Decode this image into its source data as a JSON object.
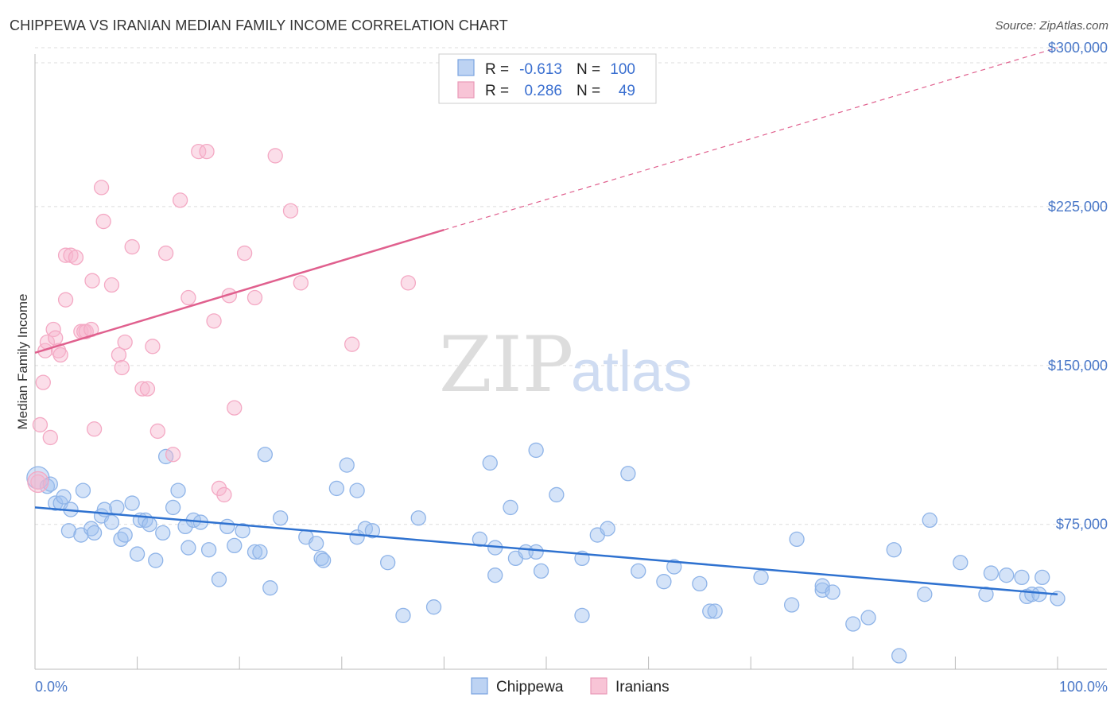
{
  "title": "CHIPPEWA VS IRANIAN MEDIAN FAMILY INCOME CORRELATION CHART",
  "source": "Source: ZipAtlas.com",
  "watermark": {
    "part1": "ZIP",
    "part2": "atlas"
  },
  "chart_data": {
    "type": "scatter",
    "ylabel": "Median Family Income",
    "xlim": [
      0,
      100
    ],
    "ylim": [
      10000,
      315000
    ],
    "x_tick_labels": {
      "left": "0.0%",
      "right": "100.0%"
    },
    "y_ticks": [
      {
        "value": 75000,
        "label": "$75,000"
      },
      {
        "value": 150000,
        "label": "$150,000"
      },
      {
        "value": 225000,
        "label": "$225,000"
      },
      {
        "value": 300000,
        "label": "$300,000"
      }
    ],
    "grid": true,
    "legend_placement": "top-center",
    "bottom_legend": [
      "Chippewa",
      "Iranians"
    ],
    "series": [
      {
        "name": "Chippewa",
        "color": "#8fb4e8",
        "line_color": "#2f72d0",
        "R": "-0.613",
        "N": "100",
        "trend": {
          "x": [
            0,
            100
          ],
          "y": [
            83000,
            42000
          ]
        },
        "points": [
          [
            0.3,
            97000
          ],
          [
            1.2,
            93000
          ],
          [
            1.5,
            94000
          ],
          [
            2,
            85000
          ],
          [
            2.5,
            85000
          ],
          [
            2.8,
            88000
          ],
          [
            3.5,
            82000
          ],
          [
            3.3,
            72000
          ],
          [
            4.5,
            70000
          ],
          [
            4.7,
            91000
          ],
          [
            5.5,
            73000
          ],
          [
            5.8,
            71000
          ],
          [
            6.5,
            79000
          ],
          [
            6.8,
            82000
          ],
          [
            7.5,
            76000
          ],
          [
            8,
            83000
          ],
          [
            8.4,
            68000
          ],
          [
            8.8,
            70000
          ],
          [
            9.5,
            85000
          ],
          [
            10,
            61000
          ],
          [
            10.3,
            77000
          ],
          [
            10.8,
            77000
          ],
          [
            11.2,
            75000
          ],
          [
            11.8,
            58000
          ],
          [
            12.5,
            71000
          ],
          [
            12.8,
            107000
          ],
          [
            13.5,
            83000
          ],
          [
            14,
            91000
          ],
          [
            14.7,
            74000
          ],
          [
            15,
            64000
          ],
          [
            15.5,
            77000
          ],
          [
            16.2,
            76000
          ],
          [
            17,
            63000
          ],
          [
            18,
            49000
          ],
          [
            18.8,
            74000
          ],
          [
            19.5,
            65000
          ],
          [
            20.3,
            72000
          ],
          [
            21.5,
            62000
          ],
          [
            22,
            62000
          ],
          [
            23,
            45000
          ],
          [
            22.5,
            108000
          ],
          [
            24,
            78000
          ],
          [
            26.5,
            69000
          ],
          [
            27.5,
            66000
          ],
          [
            28,
            59000
          ],
          [
            28.2,
            58000
          ],
          [
            29.5,
            92000
          ],
          [
            30.5,
            103000
          ],
          [
            31.5,
            69000
          ],
          [
            31.5,
            91000
          ],
          [
            32.3,
            73000
          ],
          [
            33,
            72000
          ],
          [
            34.5,
            57000
          ],
          [
            36,
            32000
          ],
          [
            37.5,
            78000
          ],
          [
            39,
            36000
          ],
          [
            43.5,
            68000
          ],
          [
            44.5,
            104000
          ],
          [
            45,
            51000
          ],
          [
            45,
            64000
          ],
          [
            46.5,
            83000
          ],
          [
            47,
            59000
          ],
          [
            48,
            62000
          ],
          [
            49,
            62000
          ],
          [
            49.5,
            53000
          ],
          [
            49,
            110000
          ],
          [
            51,
            89000
          ],
          [
            53.5,
            59000
          ],
          [
            53.5,
            32000
          ],
          [
            55,
            70000
          ],
          [
            56,
            73000
          ],
          [
            58,
            99000
          ],
          [
            59,
            53000
          ],
          [
            61.5,
            48000
          ],
          [
            62.5,
            55000
          ],
          [
            65,
            47000
          ],
          [
            66,
            34000
          ],
          [
            66.5,
            34000
          ],
          [
            71,
            50000
          ],
          [
            74,
            37000
          ],
          [
            74.5,
            68000
          ],
          [
            77,
            44000
          ],
          [
            77,
            46000
          ],
          [
            78,
            43000
          ],
          [
            80,
            28000
          ],
          [
            81.5,
            31000
          ],
          [
            84,
            63000
          ],
          [
            84.5,
            13000
          ],
          [
            87,
            42000
          ],
          [
            87.5,
            77000
          ],
          [
            90.5,
            57000
          ],
          [
            93,
            42000
          ],
          [
            93.5,
            52000
          ],
          [
            95,
            51000
          ],
          [
            96.5,
            50000
          ],
          [
            97,
            41000
          ],
          [
            97.5,
            42000
          ],
          [
            98.2,
            42000
          ],
          [
            98.5,
            50000
          ],
          [
            100,
            40000
          ]
        ]
      },
      {
        "name": "Iranians",
        "color": "#f4a9c4",
        "line_color": "#e0608e",
        "R": "0.286",
        "N": "49",
        "trend": {
          "x": [
            0,
            40
          ],
          "y": [
            156000,
            214000
          ]
        },
        "trend_extension": {
          "x": [
            40,
            100
          ],
          "y": [
            214000,
            300000
          ]
        },
        "points": [
          [
            0.3,
            95000
          ],
          [
            0.5,
            122000
          ],
          [
            0.8,
            142000
          ],
          [
            1,
            157000
          ],
          [
            1.2,
            161000
          ],
          [
            1.5,
            116000
          ],
          [
            1.8,
            167000
          ],
          [
            2,
            163000
          ],
          [
            2.3,
            157000
          ],
          [
            2.5,
            155000
          ],
          [
            3,
            181000
          ],
          [
            3,
            202000
          ],
          [
            3.5,
            202000
          ],
          [
            4,
            201000
          ],
          [
            4.5,
            166000
          ],
          [
            4.8,
            166000
          ],
          [
            5,
            166000
          ],
          [
            5.5,
            167000
          ],
          [
            5.8,
            120000
          ],
          [
            5.6,
            190000
          ],
          [
            6.5,
            234000
          ],
          [
            6.7,
            218000
          ],
          [
            7.5,
            188000
          ],
          [
            8.2,
            155000
          ],
          [
            8.5,
            149000
          ],
          [
            8.8,
            161000
          ],
          [
            9.5,
            206000
          ],
          [
            10.5,
            139000
          ],
          [
            11,
            139000
          ],
          [
            11.5,
            159000
          ],
          [
            12,
            119000
          ],
          [
            12.8,
            203000
          ],
          [
            13.5,
            108000
          ],
          [
            14.2,
            228000
          ],
          [
            15,
            182000
          ],
          [
            16,
            251000
          ],
          [
            16.8,
            251000
          ],
          [
            17.5,
            171000
          ],
          [
            18,
            92000
          ],
          [
            18.5,
            89000
          ],
          [
            19,
            183000
          ],
          [
            19.5,
            130000
          ],
          [
            20.5,
            203000
          ],
          [
            21.5,
            182000
          ],
          [
            23.5,
            249000
          ],
          [
            25,
            223000
          ],
          [
            26,
            189000
          ],
          [
            31,
            160000
          ],
          [
            36.5,
            189000
          ]
        ]
      }
    ]
  }
}
